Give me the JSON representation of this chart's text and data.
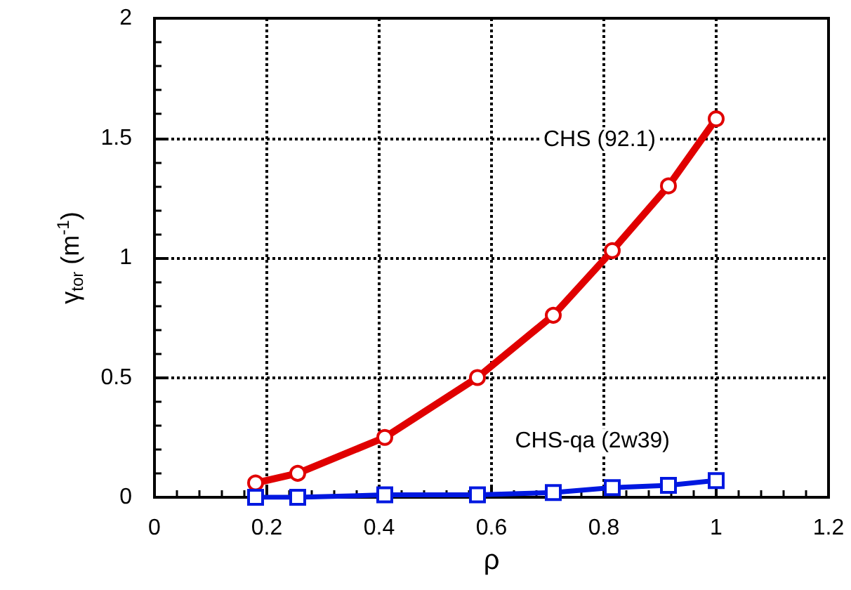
{
  "chart_data": {
    "type": "line",
    "xlabel": "ρ",
    "ylabel": "γ$_{tor}$ (m$^{-1}$)",
    "xlim": [
      0,
      1.2
    ],
    "xticks": [
      0,
      0.2,
      0.4,
      0.6,
      0.8,
      1,
      1.2
    ],
    "ylim": [
      0,
      2
    ],
    "yticks": [
      0,
      0.5,
      1,
      1.5,
      2
    ],
    "grid": true,
    "legend": false,
    "line_style": "solid",
    "series": [
      {
        "name": "CHS (92.1)",
        "color": "#e00000",
        "marker": "circle",
        "x": [
          0.18,
          0.255,
          0.41,
          0.575,
          0.71,
          0.815,
          0.915,
          1.0
        ],
        "values": [
          0.06,
          0.1,
          0.25,
          0.5,
          0.76,
          1.03,
          1.3,
          1.58
        ]
      },
      {
        "name": "CHS-qa (2w39)",
        "color": "#0018e0",
        "marker": "square",
        "x": [
          0.18,
          0.255,
          0.41,
          0.575,
          0.71,
          0.815,
          0.915,
          1.0
        ],
        "values": [
          0.0,
          0.0,
          0.01,
          0.01,
          0.02,
          0.04,
          0.05,
          0.07
        ]
      }
    ]
  }
}
